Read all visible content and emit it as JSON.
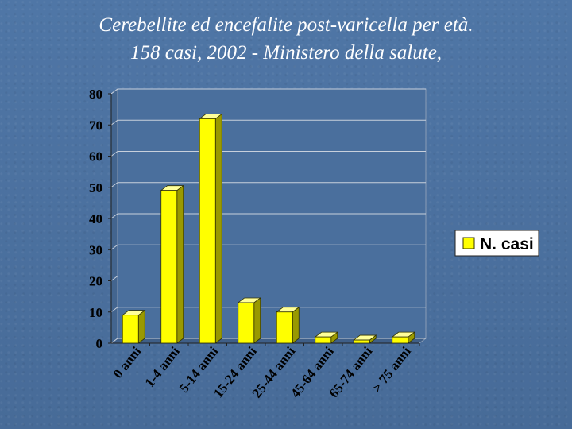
{
  "slide": {
    "title_line1": "Cerebellite ed encefalite post-varicella per età.",
    "title_line2": "158 casi, 2002 - Ministero della salute,"
  },
  "chart_data": {
    "type": "bar",
    "style": "3d-column",
    "categories": [
      "0 anni",
      "1-4 anni",
      "5-14 anni",
      "15-24 anni",
      "25-44 anni",
      "45-64 anni",
      "65-74 anni",
      "> 75 anni"
    ],
    "series": [
      {
        "name": "N. casi",
        "values": [
          9,
          49,
          72,
          13,
          10,
          2,
          1,
          2
        ],
        "color": "#ffff00"
      }
    ],
    "title": "",
    "xlabel": "",
    "ylabel": "",
    "ylim": [
      0,
      80
    ],
    "yticks": [
      "0",
      "10",
      "20",
      "30",
      "40",
      "50",
      "60",
      "70",
      "80"
    ],
    "grid": true,
    "legend_position": "right"
  },
  "colors": {
    "background": "#4a6f9d",
    "plot_wall": "#4a6f9d",
    "gridline": "#c8d0dc",
    "bar_front": "#ffff00",
    "bar_side": "#999900",
    "bar_top": "#ffff99",
    "legend_bg": "#ffffff"
  }
}
